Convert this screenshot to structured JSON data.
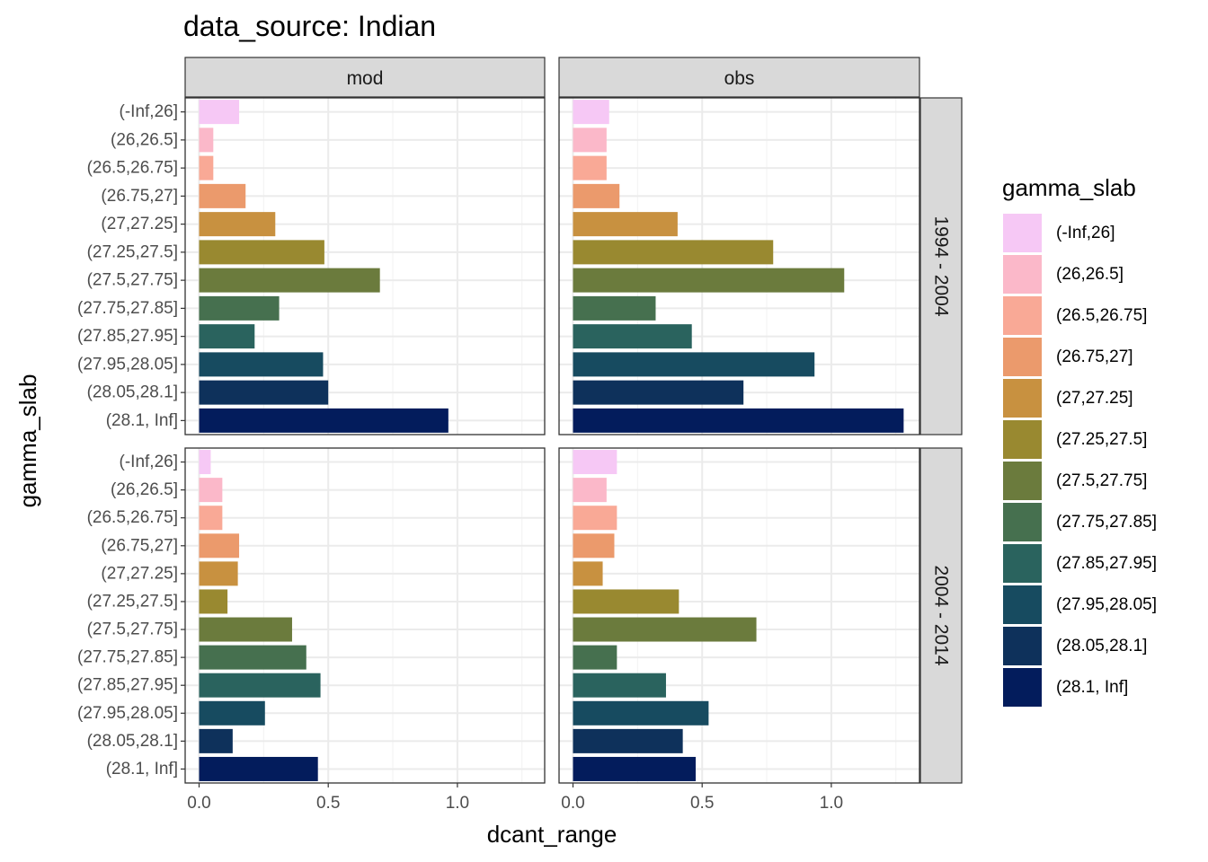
{
  "chart_data": {
    "type": "bar",
    "orientation": "horizontal",
    "title": "data_source: Indian",
    "xlabel": "dcant_range",
    "ylabel": "gamma_slab",
    "xlim": [
      0,
      1.3
    ],
    "x_ticks": [
      0.0,
      0.5,
      1.0
    ],
    "x_tick_labels": [
      "0.0",
      "0.5",
      "1.0"
    ],
    "grid": true,
    "legend_position": "right",
    "legend_title": "gamma_slab",
    "columns": [
      "mod",
      "obs"
    ],
    "rows": [
      "1994 - 2004",
      "2004 - 2014"
    ],
    "categories": [
      "(-Inf,26]",
      "(26,26.5]",
      "(26.5,26.75]",
      "(26.75,27]",
      "(27,27.25]",
      "(27.25,27.5]",
      "(27.5,27.75]",
      "(27.75,27.85]",
      "(27.85,27.95]",
      "(27.95,28.05]",
      "(28.05,28.1]",
      "(28.1, Inf]"
    ],
    "colors": [
      "#F6C8F5",
      "#FBB8C9",
      "#F9A996",
      "#EB9A6C",
      "#C89140",
      "#998930",
      "#6B7B3D",
      "#46704F",
      "#2A635E",
      "#174B60",
      "#0E315B",
      "#031C5C"
    ],
    "panels": [
      {
        "row": "1994 - 2004",
        "col": "mod",
        "values": [
          0.155,
          0.055,
          0.055,
          0.18,
          0.295,
          0.485,
          0.7,
          0.31,
          0.215,
          0.48,
          0.5,
          0.965
        ]
      },
      {
        "row": "1994 - 2004",
        "col": "obs",
        "values": [
          0.14,
          0.13,
          0.13,
          0.18,
          0.405,
          0.775,
          1.05,
          0.32,
          0.46,
          0.935,
          0.66,
          1.28
        ]
      },
      {
        "row": "2004 - 2014",
        "col": "mod",
        "values": [
          0.045,
          0.09,
          0.09,
          0.155,
          0.15,
          0.11,
          0.36,
          0.415,
          0.47,
          0.255,
          0.13,
          0.46
        ]
      },
      {
        "row": "2004 - 2014",
        "col": "obs",
        "values": [
          0.17,
          0.13,
          0.17,
          0.16,
          0.115,
          0.41,
          0.71,
          0.17,
          0.36,
          0.525,
          0.425,
          0.475
        ]
      }
    ]
  }
}
